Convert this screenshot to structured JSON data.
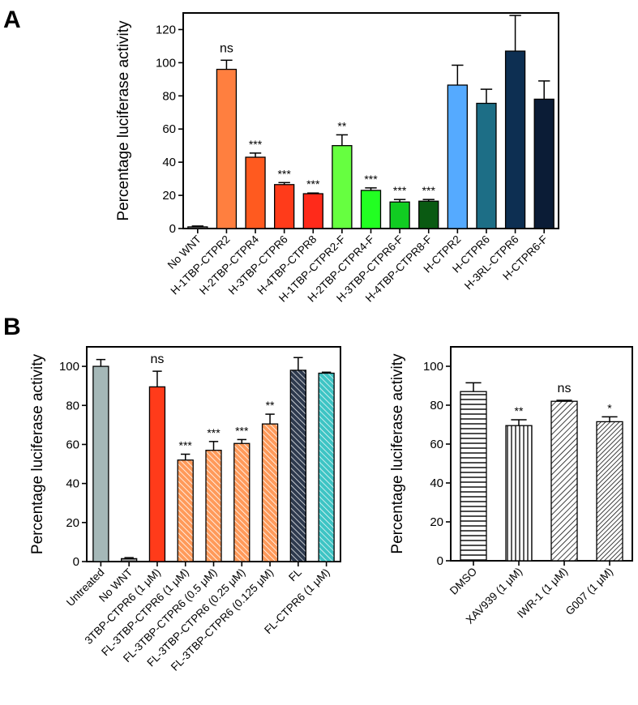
{
  "panels": {
    "a": "A",
    "b": "B"
  },
  "chart_data": [
    {
      "type": "bar",
      "panel": "A",
      "ylabel": "Percentage luciferase activity",
      "ylim": [
        0,
        130
      ],
      "yticks": [
        0,
        20,
        40,
        60,
        80,
        100,
        120
      ],
      "grid": false,
      "categories": [
        "No WNT",
        "H-1TBP-CTPR2",
        "H-2TBP-CTPR4",
        "H-3TBP-CTPR6",
        "H-4TBP-CTPR8",
        "H-1TBP-CTPR2-F",
        "H-2TBP-CTPR4-F",
        "H-3TBP-CTPR6-F",
        "H-4TBP-CTPR8-F",
        "H-CTPR2",
        "H-CTPR6",
        "H-3RL-CTPR6",
        "H-CTPR6-F"
      ],
      "values": [
        1,
        96,
        43,
        26.5,
        21,
        50,
        23,
        16,
        16.5,
        86.5,
        75.5,
        107,
        78
      ],
      "errors": [
        0.5,
        5.5,
        2.5,
        1.2,
        0.4,
        6.5,
        1.5,
        1.5,
        1,
        12,
        8.5,
        21.5,
        11
      ],
      "significance": [
        "",
        "ns",
        "***",
        "***",
        "***",
        "**",
        "***",
        "***",
        "***",
        "",
        "",
        "",
        ""
      ],
      "colors": [
        "#7f7f7f",
        "#ff7f3f",
        "#ff5a1f",
        "#ff3b1a",
        "#ff2a1a",
        "#66ff40",
        "#22ff22",
        "#11cc22",
        "#0a5a12",
        "#55aaff",
        "#1d6e86",
        "#0d2f52",
        "#0b1c36"
      ],
      "patterns": [
        "solid",
        "solid",
        "solid",
        "solid",
        "solid",
        "solid",
        "solid",
        "solid",
        "solid",
        "solid",
        "solid",
        "solid",
        "solid"
      ]
    },
    {
      "type": "bar",
      "panel": "B-left",
      "ylabel": "Percentage luciferase activity",
      "ylim": [
        0,
        110
      ],
      "yticks": [
        0,
        20,
        40,
        60,
        80,
        100
      ],
      "grid": false,
      "categories": [
        "Untreated",
        "No WNT",
        "3TBP-CTPR6 (1 μM)",
        "FL-3TBP-CTPR6 (1 μM)",
        "FL-3TBP-CTPR6 (0.5 μM)",
        "FL-3TBP-CTPR6 (0.25 μM)",
        "FL-3TBP-CTPR6 (0.125 μM)",
        "FL",
        "FL-CTPR6 (1 μM)"
      ],
      "values": [
        100,
        1.5,
        89.5,
        52,
        57,
        60.5,
        70.5,
        98,
        96.5
      ],
      "errors": [
        3.5,
        0.5,
        8,
        3,
        4.5,
        2,
        5,
        6.5,
        0.5
      ],
      "significance": [
        "",
        "",
        "ns",
        "***",
        "***",
        "***",
        "**",
        "",
        ""
      ],
      "colors": [
        "#a5b8b8",
        "#888888",
        "#ff3b1a",
        "#ff9a5a",
        "#ff9a5a",
        "#ff9a5a",
        "#ff9a5a",
        "#2e3a4e",
        "#3ec4c4"
      ],
      "patterns": [
        "solid",
        "solid",
        "solid",
        "hatch",
        "hatch",
        "hatch",
        "hatch",
        "hatch",
        "hatch"
      ]
    },
    {
      "type": "bar",
      "panel": "B-right",
      "ylabel": "Percentage luciferase activity",
      "ylim": [
        0,
        110
      ],
      "yticks": [
        0,
        20,
        40,
        60,
        80,
        100
      ],
      "grid": false,
      "categories": [
        "DMSO",
        "XAV939 (1 μM)",
        "IWR-1 (1 μM)",
        "G007 (1 μM)"
      ],
      "values": [
        87,
        69.5,
        82,
        71.5
      ],
      "errors": [
        4.5,
        3,
        0.5,
        2.5
      ],
      "significance": [
        "",
        "**",
        "ns",
        "*"
      ],
      "colors": [
        "#000000",
        "#000000",
        "#000000",
        "#000000"
      ],
      "patterns": [
        "horizontal",
        "vertical",
        "diagonal",
        "diagonal-dense"
      ]
    }
  ]
}
